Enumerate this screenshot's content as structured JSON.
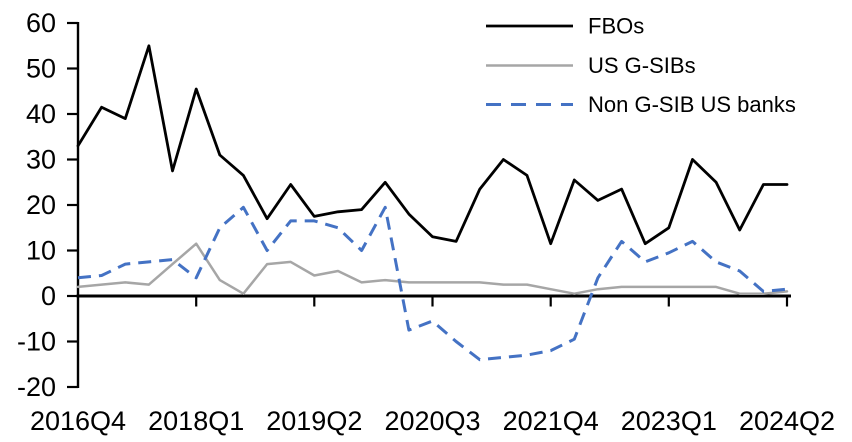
{
  "chart_data": {
    "type": "line",
    "title": "",
    "xlabel": "",
    "ylabel": "",
    "ylim": [
      -20,
      60
    ],
    "y_ticks": [
      60,
      50,
      40,
      30,
      20,
      10,
      0,
      -10,
      -20
    ],
    "y_tick_labels": [
      "60",
      "50",
      "40",
      "30",
      "20",
      "10",
      "0",
      "-10",
      "-20"
    ],
    "x_tick_labels": [
      "2016Q4",
      "2018Q1",
      "2019Q2",
      "2020Q3",
      "2021Q4",
      "2023Q1",
      "2024Q2"
    ],
    "x": [
      "2016Q4",
      "2017Q1",
      "2017Q2",
      "2017Q3",
      "2017Q4",
      "2018Q1",
      "2018Q2",
      "2018Q3",
      "2018Q4",
      "2019Q1",
      "2019Q2",
      "2019Q3",
      "2019Q4",
      "2020Q1",
      "2020Q2",
      "2020Q3",
      "2020Q4",
      "2021Q1",
      "2021Q2",
      "2021Q3",
      "2021Q4",
      "2022Q1",
      "2022Q2",
      "2022Q3",
      "2022Q4",
      "2023Q1",
      "2023Q2",
      "2023Q3",
      "2023Q4",
      "2024Q1",
      "2024Q2"
    ],
    "grid": false,
    "legend_position": "top-right",
    "axis_color": "#000000",
    "series": [
      {
        "name": "FBOs",
        "color": "#000000",
        "style": "solid",
        "values": [
          33,
          41.5,
          39,
          55,
          27.5,
          45.5,
          31,
          26.5,
          17,
          24.5,
          17.5,
          18.5,
          19,
          25,
          18,
          13,
          12,
          23.5,
          30,
          26.5,
          11.5,
          25.5,
          21,
          23.5,
          11.5,
          15,
          30,
          25,
          14.5,
          24.5,
          24.5
        ]
      },
      {
        "name": "US G-SIBs",
        "color": "#a6a6a6",
        "style": "solid",
        "values": [
          2,
          2.5,
          3,
          2.5,
          7,
          11.5,
          3.5,
          0.5,
          7,
          7.5,
          4.5,
          5.5,
          3,
          3.5,
          3,
          3,
          3,
          3,
          2.5,
          2.5,
          1.5,
          0.5,
          1.5,
          2,
          2,
          2,
          2,
          2,
          0.5,
          0.5,
          1
        ]
      },
      {
        "name": "Non G-SIB US banks",
        "color": "#4472c4",
        "style": "dashed",
        "values": [
          4,
          4.5,
          7,
          7.5,
          8,
          4,
          15,
          19.5,
          10,
          16.5,
          16.5,
          15,
          10,
          19.5,
          -7.5,
          -5.5,
          -10,
          -14,
          -13.5,
          -13,
          -12,
          -9.5,
          4,
          12,
          7.5,
          9.5,
          12,
          7.5,
          5.5,
          1,
          1.5
        ]
      }
    ]
  }
}
